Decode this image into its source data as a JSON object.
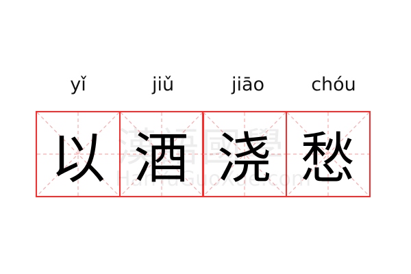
{
  "words": [
    {
      "pinyin": "yǐ",
      "hanzi": "以"
    },
    {
      "pinyin": "jiǔ",
      "hanzi": "酒"
    },
    {
      "pinyin": "jiāo",
      "hanzi": "浇"
    },
    {
      "pinyin": "chóu",
      "hanzi": "愁"
    }
  ],
  "watermark": {
    "chinese": "漢語國學",
    "latin": "HanYuGuoXue.com"
  },
  "colors": {
    "grid_border": "#ff2b2b",
    "guide_lines": "#ffaaaa",
    "text": "#000000"
  }
}
